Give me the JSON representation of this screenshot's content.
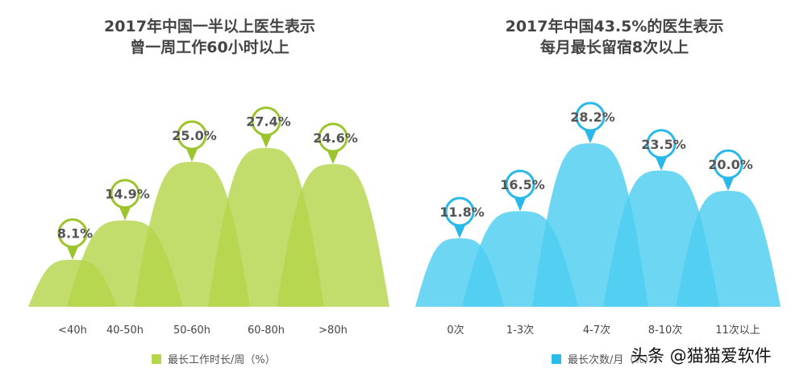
{
  "chart_data": [
    {
      "type": "area",
      "title": "2017年中国一半以上医生表示\n曾一周工作60小时以上",
      "categories": [
        "<40h",
        "40-50h",
        "50-60h",
        "60-80h",
        ">80h"
      ],
      "values": [
        8.1,
        14.9,
        25.0,
        27.4,
        24.6
      ],
      "labels": [
        "8.1%",
        "14.9%",
        "25.0%",
        "27.4%",
        "24.6%"
      ],
      "legend": "最长工作时长/周（%）",
      "color": "#b5d54a",
      "pin_color": "#9cc42c"
    },
    {
      "type": "area",
      "title": "2017年中国43.5%的医生表示\n每月最长留宿8次以上",
      "categories": [
        "0次",
        "1-3次",
        "4-7次",
        "8-10次",
        "11次以上"
      ],
      "values": [
        11.8,
        16.5,
        28.2,
        23.5,
        20.0
      ],
      "labels": [
        "11.8%",
        "16.5%",
        "28.2%",
        "23.5%",
        "20.0%"
      ],
      "legend": "最长次数/月（%）",
      "color": "#4dcdf0",
      "pin_color": "#29b9e8"
    }
  ],
  "watermark": "头条 @猫猫爱软件"
}
